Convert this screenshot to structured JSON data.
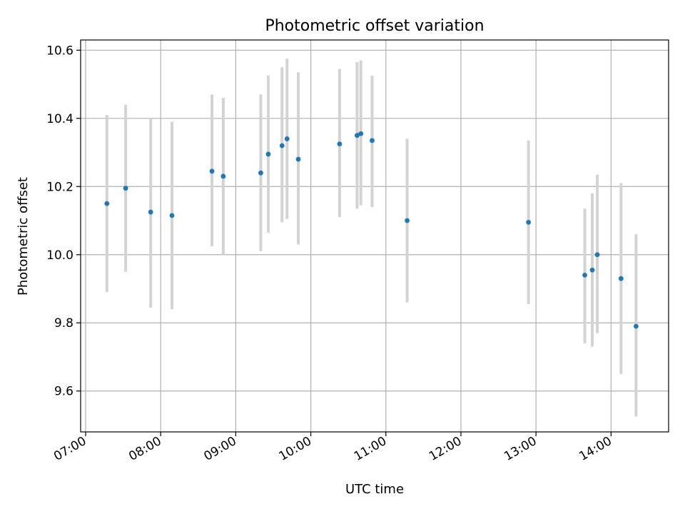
{
  "chart_data": {
    "type": "scatter",
    "title": "Photometric offset variation",
    "xlabel": "UTC time",
    "ylabel": "Photometric offset",
    "x_tick_labels": [
      "07:00",
      "08:00",
      "09:00",
      "10:00",
      "11:00",
      "12:00",
      "13:00",
      "14:00"
    ],
    "y_tick_labels": [
      "9.6",
      "9.8",
      "10.0",
      "10.2",
      "10.4",
      "10.6"
    ],
    "xlim": [
      "06:56",
      "14:46"
    ],
    "ylim": [
      9.48,
      10.63
    ],
    "grid": true,
    "colors": {
      "points": "#1f77b4",
      "errorbars": "#d3d3d3",
      "grid": "#b0b0b0"
    },
    "points": [
      {
        "x": "07:17",
        "y": 10.15,
        "yerr_low": 9.89,
        "yerr_high": 10.41
      },
      {
        "x": "07:32",
        "y": 10.195,
        "yerr_low": 9.95,
        "yerr_high": 10.44
      },
      {
        "x": "07:52",
        "y": 10.125,
        "yerr_low": 9.845,
        "yerr_high": 10.4
      },
      {
        "x": "08:09",
        "y": 10.115,
        "yerr_low": 9.84,
        "yerr_high": 10.39
      },
      {
        "x": "08:41",
        "y": 10.245,
        "yerr_low": 10.025,
        "yerr_high": 10.47
      },
      {
        "x": "08:50",
        "y": 10.23,
        "yerr_low": 10.0,
        "yerr_high": 10.46
      },
      {
        "x": "09:20",
        "y": 10.24,
        "yerr_low": 10.01,
        "yerr_high": 10.47
      },
      {
        "x": "09:26",
        "y": 10.295,
        "yerr_low": 10.065,
        "yerr_high": 10.525
      },
      {
        "x": "09:37",
        "y": 10.32,
        "yerr_low": 10.095,
        "yerr_high": 10.55
      },
      {
        "x": "09:41",
        "y": 10.34,
        "yerr_low": 10.105,
        "yerr_high": 10.575
      },
      {
        "x": "09:50",
        "y": 10.28,
        "yerr_low": 10.03,
        "yerr_high": 10.535
      },
      {
        "x": "10:23",
        "y": 10.325,
        "yerr_low": 10.11,
        "yerr_high": 10.545
      },
      {
        "x": "10:37",
        "y": 10.35,
        "yerr_low": 10.135,
        "yerr_high": 10.565
      },
      {
        "x": "10:40",
        "y": 10.355,
        "yerr_low": 10.145,
        "yerr_high": 10.57
      },
      {
        "x": "10:49",
        "y": 10.335,
        "yerr_low": 10.14,
        "yerr_high": 10.525
      },
      {
        "x": "11:17",
        "y": 10.1,
        "yerr_low": 9.86,
        "yerr_high": 10.34
      },
      {
        "x": "12:54",
        "y": 10.095,
        "yerr_low": 9.855,
        "yerr_high": 10.335
      },
      {
        "x": "13:39",
        "y": 9.94,
        "yerr_low": 9.74,
        "yerr_high": 10.135
      },
      {
        "x": "13:45",
        "y": 9.955,
        "yerr_low": 9.73,
        "yerr_high": 10.18
      },
      {
        "x": "13:49",
        "y": 10.0,
        "yerr_low": 9.77,
        "yerr_high": 10.235
      },
      {
        "x": "14:08",
        "y": 9.93,
        "yerr_low": 9.65,
        "yerr_high": 10.21
      },
      {
        "x": "14:20",
        "y": 9.79,
        "yerr_low": 9.525,
        "yerr_high": 10.06
      }
    ]
  }
}
